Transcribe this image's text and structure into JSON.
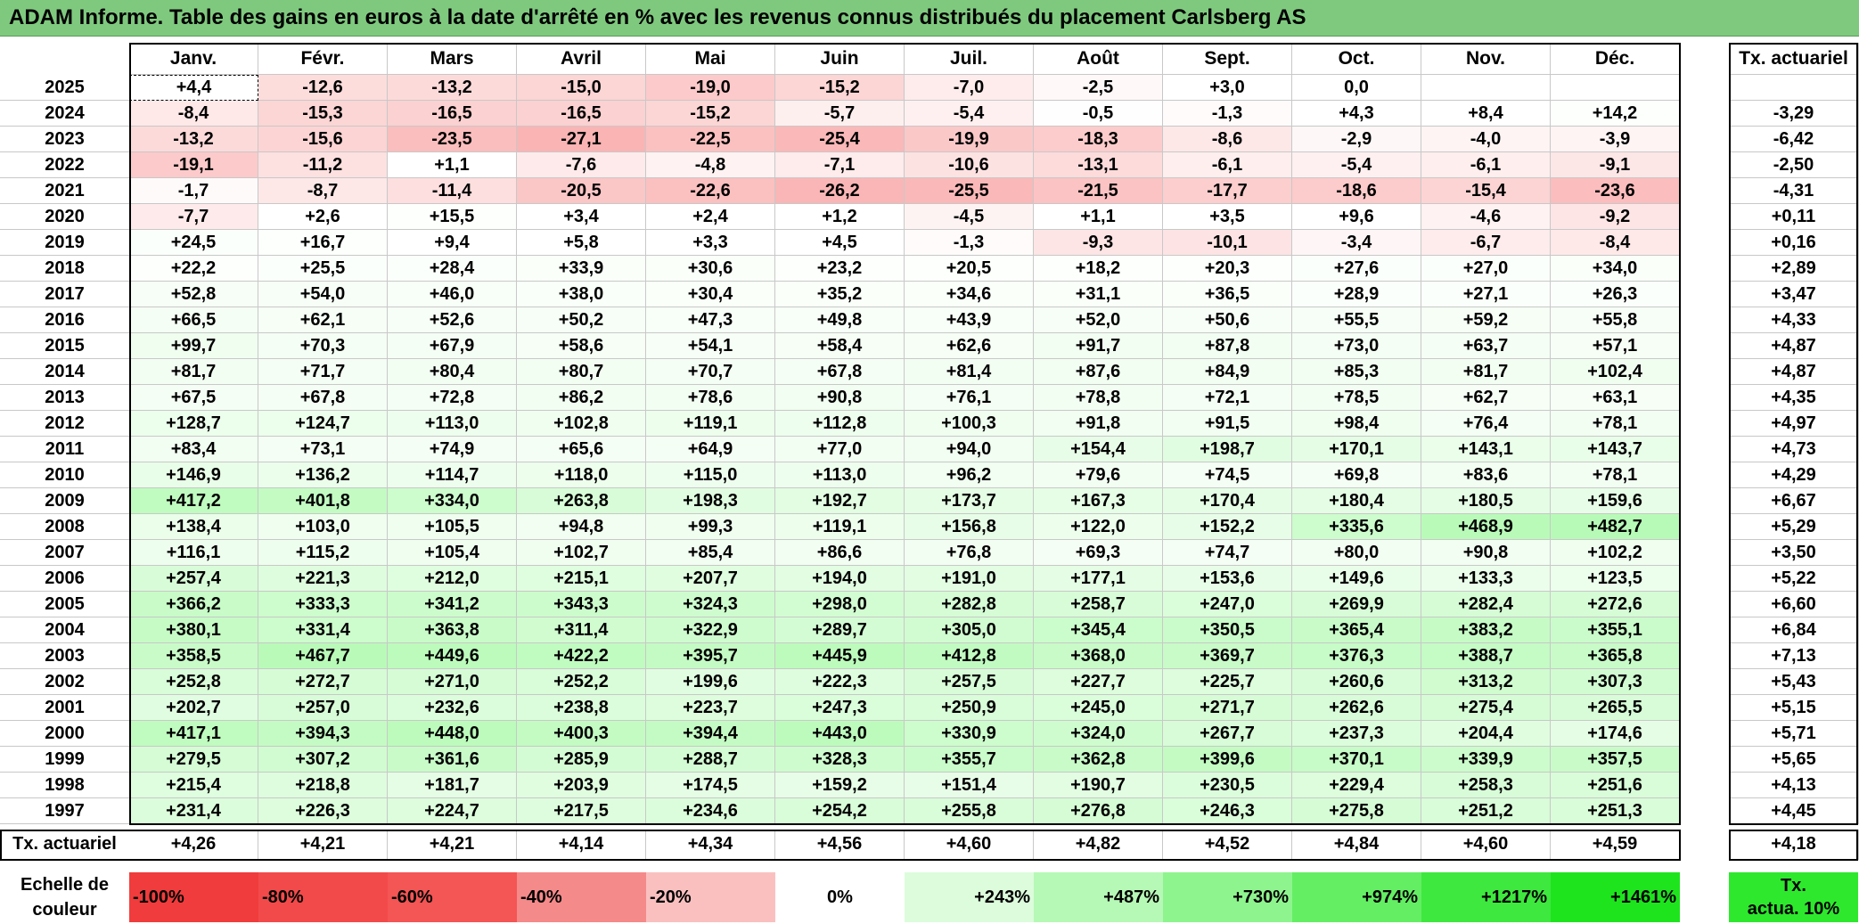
{
  "title": "ADAM Informe. Table des gains en euros à la date d'arrêté en % avec les revenus connus distribués du placement Carlsberg AS",
  "months": [
    "Janv.",
    "Févr.",
    "Mars",
    "Avril",
    "Mai",
    "Juin",
    "Juil.",
    "Août",
    "Sept.",
    "Oct.",
    "Nov.",
    "Déc."
  ],
  "rate_header": "Tx. actuariel",
  "rows": [
    {
      "year": "2025",
      "values": [
        "+4,4",
        "-12,6",
        "-13,2",
        "-15,0",
        "-19,0",
        "-15,2",
        "-7,0",
        "-2,5",
        "+3,0",
        "0,0",
        "",
        ""
      ],
      "rate": ""
    },
    {
      "year": "2024",
      "values": [
        "-8,4",
        "-15,3",
        "-16,5",
        "-16,5",
        "-15,2",
        "-5,7",
        "-5,4",
        "-0,5",
        "-1,3",
        "+4,3",
        "+8,4",
        "+14,2"
      ],
      "rate": "-3,29"
    },
    {
      "year": "2023",
      "values": [
        "-13,2",
        "-15,6",
        "-23,5",
        "-27,1",
        "-22,5",
        "-25,4",
        "-19,9",
        "-18,3",
        "-8,6",
        "-2,9",
        "-4,0",
        "-3,9"
      ],
      "rate": "-6,42"
    },
    {
      "year": "2022",
      "values": [
        "-19,1",
        "-11,2",
        "+1,1",
        "-7,6",
        "-4,8",
        "-7,1",
        "-10,6",
        "-13,1",
        "-6,1",
        "-5,4",
        "-6,1",
        "-9,1"
      ],
      "rate": "-2,50"
    },
    {
      "year": "2021",
      "values": [
        "-1,7",
        "-8,7",
        "-11,4",
        "-20,5",
        "-22,6",
        "-26,2",
        "-25,5",
        "-21,5",
        "-17,7",
        "-18,6",
        "-15,4",
        "-23,6"
      ],
      "rate": "-4,31"
    },
    {
      "year": "2020",
      "values": [
        "-7,7",
        "+2,6",
        "+15,5",
        "+3,4",
        "+2,4",
        "+1,2",
        "-4,5",
        "+1,1",
        "+3,5",
        "+9,6",
        "-4,6",
        "-9,2"
      ],
      "rate": "+0,11"
    },
    {
      "year": "2019",
      "values": [
        "+24,5",
        "+16,7",
        "+9,4",
        "+5,8",
        "+3,3",
        "+4,5",
        "-1,3",
        "-9,3",
        "-10,1",
        "-3,4",
        "-6,7",
        "-8,4"
      ],
      "rate": "+0,16"
    },
    {
      "year": "2018",
      "values": [
        "+22,2",
        "+25,5",
        "+28,4",
        "+33,9",
        "+30,6",
        "+23,2",
        "+20,5",
        "+18,2",
        "+20,3",
        "+27,6",
        "+27,0",
        "+34,0"
      ],
      "rate": "+2,89"
    },
    {
      "year": "2017",
      "values": [
        "+52,8",
        "+54,0",
        "+46,0",
        "+38,0",
        "+30,4",
        "+35,2",
        "+34,6",
        "+31,1",
        "+36,5",
        "+28,9",
        "+27,1",
        "+26,3"
      ],
      "rate": "+3,47"
    },
    {
      "year": "2016",
      "values": [
        "+66,5",
        "+62,1",
        "+52,6",
        "+50,2",
        "+47,3",
        "+49,8",
        "+43,9",
        "+52,0",
        "+50,6",
        "+55,5",
        "+59,2",
        "+55,8"
      ],
      "rate": "+4,33"
    },
    {
      "year": "2015",
      "values": [
        "+99,7",
        "+70,3",
        "+67,9",
        "+58,6",
        "+54,1",
        "+58,4",
        "+62,6",
        "+91,7",
        "+87,8",
        "+73,0",
        "+63,7",
        "+57,1"
      ],
      "rate": "+4,87"
    },
    {
      "year": "2014",
      "values": [
        "+81,7",
        "+71,7",
        "+80,4",
        "+80,7",
        "+70,7",
        "+67,8",
        "+81,4",
        "+87,6",
        "+84,9",
        "+85,3",
        "+81,7",
        "+102,4"
      ],
      "rate": "+4,87"
    },
    {
      "year": "2013",
      "values": [
        "+67,5",
        "+67,8",
        "+72,8",
        "+86,2",
        "+78,6",
        "+90,8",
        "+76,1",
        "+78,8",
        "+72,1",
        "+78,5",
        "+62,7",
        "+63,1"
      ],
      "rate": "+4,35"
    },
    {
      "year": "2012",
      "values": [
        "+128,7",
        "+124,7",
        "+113,0",
        "+102,8",
        "+119,1",
        "+112,8",
        "+100,3",
        "+91,8",
        "+91,5",
        "+98,4",
        "+76,4",
        "+78,1"
      ],
      "rate": "+4,97"
    },
    {
      "year": "2011",
      "values": [
        "+83,4",
        "+73,1",
        "+74,9",
        "+65,6",
        "+64,9",
        "+77,0",
        "+94,0",
        "+154,4",
        "+198,7",
        "+170,1",
        "+143,1",
        "+143,7"
      ],
      "rate": "+4,73"
    },
    {
      "year": "2010",
      "values": [
        "+146,9",
        "+136,2",
        "+114,7",
        "+118,0",
        "+115,0",
        "+113,0",
        "+96,2",
        "+79,6",
        "+74,5",
        "+69,8",
        "+83,6",
        "+78,1"
      ],
      "rate": "+4,29"
    },
    {
      "year": "2009",
      "values": [
        "+417,2",
        "+401,8",
        "+334,0",
        "+263,8",
        "+198,3",
        "+192,7",
        "+173,7",
        "+167,3",
        "+170,4",
        "+180,4",
        "+180,5",
        "+159,6"
      ],
      "rate": "+6,67"
    },
    {
      "year": "2008",
      "values": [
        "+138,4",
        "+103,0",
        "+105,5",
        "+94,8",
        "+99,3",
        "+119,1",
        "+156,8",
        "+122,0",
        "+152,2",
        "+335,6",
        "+468,9",
        "+482,7"
      ],
      "rate": "+5,29"
    },
    {
      "year": "2007",
      "values": [
        "+116,1",
        "+115,2",
        "+105,4",
        "+102,7",
        "+85,4",
        "+86,6",
        "+76,8",
        "+69,3",
        "+74,7",
        "+80,0",
        "+90,8",
        "+102,2"
      ],
      "rate": "+3,50"
    },
    {
      "year": "2006",
      "values": [
        "+257,4",
        "+221,3",
        "+212,0",
        "+215,1",
        "+207,7",
        "+194,0",
        "+191,0",
        "+177,1",
        "+153,6",
        "+149,6",
        "+133,3",
        "+123,5"
      ],
      "rate": "+5,22"
    },
    {
      "year": "2005",
      "values": [
        "+366,2",
        "+333,3",
        "+341,2",
        "+343,3",
        "+324,3",
        "+298,0",
        "+282,8",
        "+258,7",
        "+247,0",
        "+269,9",
        "+282,4",
        "+272,6"
      ],
      "rate": "+6,60"
    },
    {
      "year": "2004",
      "values": [
        "+380,1",
        "+331,4",
        "+363,8",
        "+311,4",
        "+322,9",
        "+289,7",
        "+305,0",
        "+345,4",
        "+350,5",
        "+365,4",
        "+383,2",
        "+355,1"
      ],
      "rate": "+6,84"
    },
    {
      "year": "2003",
      "values": [
        "+358,5",
        "+467,7",
        "+449,6",
        "+422,2",
        "+395,7",
        "+445,9",
        "+412,8",
        "+368,0",
        "+369,7",
        "+376,3",
        "+388,7",
        "+365,8"
      ],
      "rate": "+7,13"
    },
    {
      "year": "2002",
      "values": [
        "+252,8",
        "+272,7",
        "+271,0",
        "+252,2",
        "+199,6",
        "+222,3",
        "+257,5",
        "+227,7",
        "+225,7",
        "+260,6",
        "+313,2",
        "+307,3"
      ],
      "rate": "+5,43"
    },
    {
      "year": "2001",
      "values": [
        "+202,7",
        "+257,0",
        "+232,6",
        "+238,8",
        "+223,7",
        "+247,3",
        "+250,9",
        "+245,0",
        "+271,7",
        "+262,6",
        "+275,4",
        "+265,5"
      ],
      "rate": "+5,15"
    },
    {
      "year": "2000",
      "values": [
        "+417,1",
        "+394,3",
        "+448,0",
        "+400,3",
        "+394,4",
        "+443,0",
        "+330,9",
        "+324,0",
        "+267,7",
        "+237,3",
        "+204,4",
        "+174,6"
      ],
      "rate": "+5,71"
    },
    {
      "year": "1999",
      "values": [
        "+279,5",
        "+307,2",
        "+361,6",
        "+285,9",
        "+288,7",
        "+328,3",
        "+355,7",
        "+362,8",
        "+399,6",
        "+370,1",
        "+339,9",
        "+357,5"
      ],
      "rate": "+5,65"
    },
    {
      "year": "1998",
      "values": [
        "+215,4",
        "+218,8",
        "+181,7",
        "+203,9",
        "+174,5",
        "+159,2",
        "+151,4",
        "+190,7",
        "+230,5",
        "+229,4",
        "+258,3",
        "+251,6"
      ],
      "rate": "+4,13"
    },
    {
      "year": "1997",
      "values": [
        "+231,4",
        "+226,3",
        "+224,7",
        "+217,5",
        "+234,6",
        "+254,2",
        "+255,8",
        "+276,8",
        "+246,3",
        "+275,8",
        "+251,2",
        "+251,3"
      ],
      "rate": "+4,45"
    }
  ],
  "summary": {
    "label": "Tx. actuariel",
    "values": [
      "+4,26",
      "+4,21",
      "+4,21",
      "+4,14",
      "+4,34",
      "+4,56",
      "+4,60",
      "+4,82",
      "+4,52",
      "+4,84",
      "+4,60",
      "+4,59"
    ],
    "rate": "+4,18"
  },
  "legend": {
    "label_line1": "Echelle de",
    "label_line2": "couleur",
    "items": [
      {
        "text": "-100%",
        "align": "left",
        "color": "#f03c3c"
      },
      {
        "text": "-80%",
        "align": "left",
        "color": "#f24a4a"
      },
      {
        "text": "-60%",
        "align": "left",
        "color": "#f45555"
      },
      {
        "text": "-40%",
        "align": "left",
        "color": "#f58a8a"
      },
      {
        "text": "-20%",
        "align": "left",
        "color": "#fac0c0"
      },
      {
        "text": "0%",
        "align": "center",
        "color": "#ffffff"
      },
      {
        "text": "+243%",
        "align": "right",
        "color": "#dcfcdc"
      },
      {
        "text": "+487%",
        "align": "right",
        "color": "#b6f8b6"
      },
      {
        "text": "+730%",
        "align": "right",
        "color": "#8ef48e"
      },
      {
        "text": "+974%",
        "align": "right",
        "color": "#64ee64"
      },
      {
        "text": "+1217%",
        "align": "right",
        "color": "#3ee83e"
      },
      {
        "text": "+1461%",
        "align": "right",
        "color": "#1ee41e"
      }
    ],
    "rate_line1": "Tx.",
    "rate_line2": "actua. 10%",
    "rate_color": "#2ee82e"
  },
  "colors": {
    "title_bg": "#7fc97f",
    "negative_max": "#f03c3c",
    "positive_max": "#1ee41e"
  }
}
